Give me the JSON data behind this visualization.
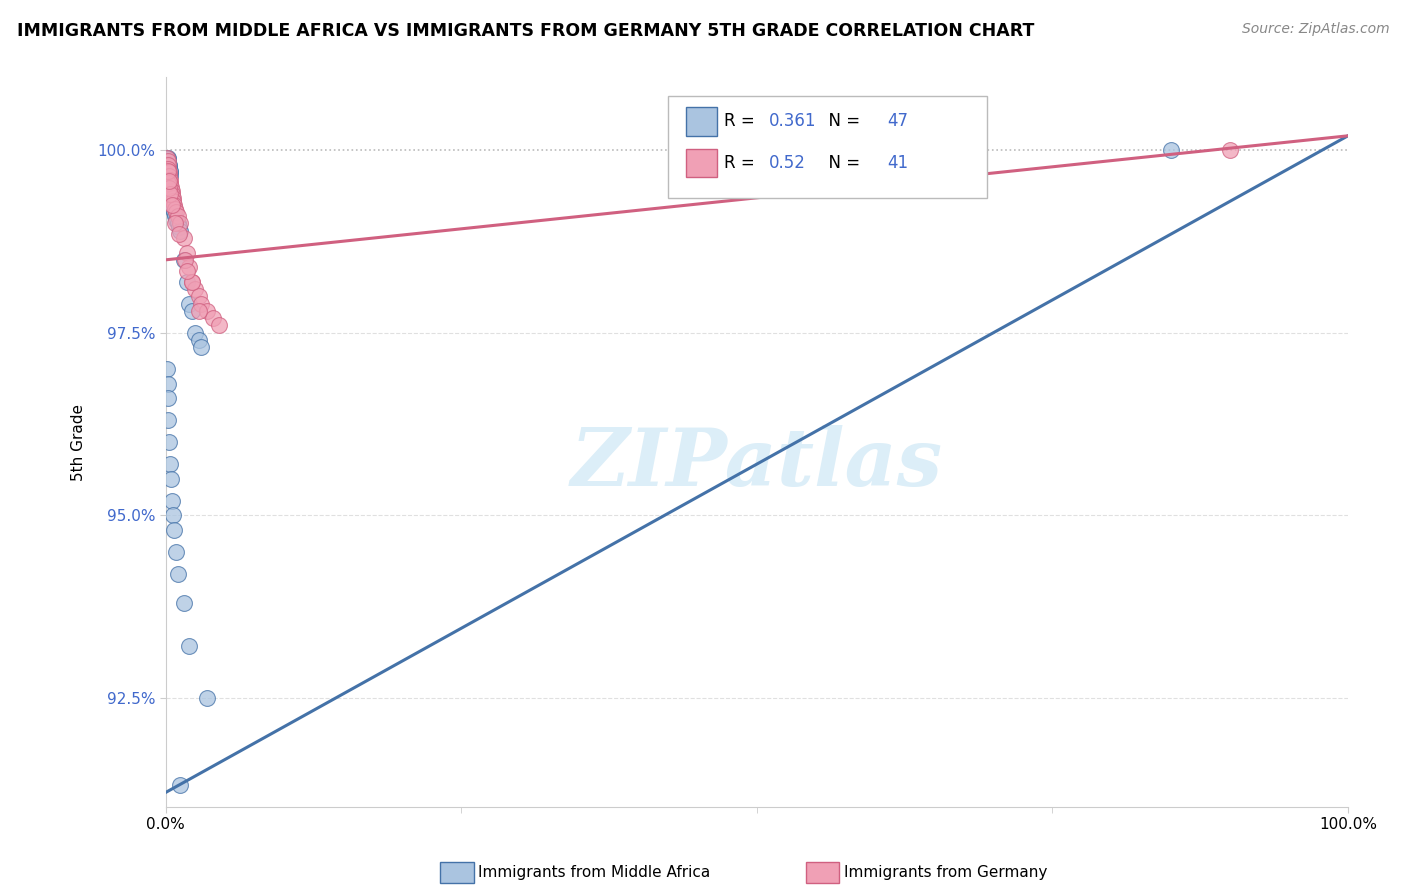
{
  "title": "IMMIGRANTS FROM MIDDLE AFRICA VS IMMIGRANTS FROM GERMANY 5TH GRADE CORRELATION CHART",
  "source": "Source: ZipAtlas.com",
  "xlabel_legend_left": "Immigrants from Middle Africa",
  "xlabel_legend_right": "Immigrants from Germany",
  "ylabel": "5th Grade",
  "xlim": [
    0.0,
    100.0
  ],
  "ylim": [
    91.0,
    101.0
  ],
  "yticks": [
    92.5,
    95.0,
    97.5,
    100.0
  ],
  "yticklabels": [
    "92.5%",
    "95.0%",
    "97.5%",
    "100.0%"
  ],
  "xticklabels": [
    "0.0%",
    "100.0%"
  ],
  "blue_R": 0.361,
  "blue_N": 47,
  "pink_R": 0.52,
  "pink_N": 41,
  "blue_color": "#aac4e0",
  "pink_color": "#f0a0b5",
  "blue_line_color": "#4472a8",
  "pink_line_color": "#d06080",
  "blue_edge_color": "#4472a8",
  "pink_edge_color": "#d06080",
  "watermark_text": "ZIPatlas",
  "watermark_color": "#dceef8",
  "tick_label_color": "#4169cc",
  "grid_color": "#cccccc",
  "dotted_line_color": "#aaaaaa",
  "blue_line_x0": 0.0,
  "blue_line_y0": 91.2,
  "blue_line_x1": 100.0,
  "blue_line_y1": 100.2,
  "pink_line_x0": 0.0,
  "pink_line_y0": 98.5,
  "pink_line_x1": 100.0,
  "pink_line_y1": 100.2,
  "blue_dots_x": [
    0.15,
    0.18,
    0.2,
    0.22,
    0.25,
    0.28,
    0.3,
    0.32,
    0.35,
    0.38,
    0.4,
    0.42,
    0.45,
    0.5,
    0.55,
    0.6,
    0.65,
    0.7,
    0.8,
    0.9,
    1.0,
    1.1,
    1.2,
    1.5,
    1.8,
    2.0,
    2.2,
    2.5,
    2.8,
    3.0,
    0.12,
    0.15,
    0.18,
    0.22,
    0.28,
    0.35,
    0.42,
    0.5,
    0.6,
    0.7,
    0.85,
    1.0,
    1.5,
    2.0,
    3.5,
    85.0,
    1.2
  ],
  "blue_dots_y": [
    99.85,
    99.9,
    99.88,
    99.82,
    99.78,
    99.75,
    99.8,
    99.7,
    99.65,
    99.72,
    99.5,
    99.45,
    99.4,
    99.35,
    99.3,
    99.25,
    99.2,
    99.15,
    99.1,
    99.05,
    99.0,
    98.95,
    98.9,
    98.5,
    98.2,
    97.9,
    97.8,
    97.5,
    97.4,
    97.3,
    97.0,
    96.8,
    96.6,
    96.3,
    96.0,
    95.7,
    95.5,
    95.2,
    95.0,
    94.8,
    94.5,
    94.2,
    93.8,
    93.2,
    92.5,
    100.0,
    91.3
  ],
  "pink_dots_x": [
    0.12,
    0.15,
    0.18,
    0.22,
    0.25,
    0.3,
    0.35,
    0.4,
    0.45,
    0.5,
    0.55,
    0.6,
    0.65,
    0.7,
    0.8,
    0.9,
    1.0,
    1.2,
    1.5,
    1.8,
    2.0,
    2.2,
    2.5,
    2.8,
    3.0,
    3.5,
    4.0,
    4.5,
    0.2,
    0.28,
    0.38,
    0.55,
    0.75,
    1.1,
    1.6,
    2.2,
    2.8,
    90.0,
    0.15,
    0.3,
    1.8
  ],
  "pink_dots_y": [
    99.9,
    99.85,
    99.8,
    99.75,
    99.7,
    99.65,
    99.6,
    99.55,
    99.5,
    99.45,
    99.4,
    99.35,
    99.3,
    99.25,
    99.2,
    99.15,
    99.1,
    99.0,
    98.8,
    98.6,
    98.4,
    98.2,
    98.1,
    98.0,
    97.9,
    97.8,
    97.7,
    97.6,
    99.55,
    99.48,
    99.4,
    99.25,
    99.0,
    98.85,
    98.5,
    98.2,
    97.8,
    100.0,
    99.72,
    99.58,
    98.35
  ]
}
